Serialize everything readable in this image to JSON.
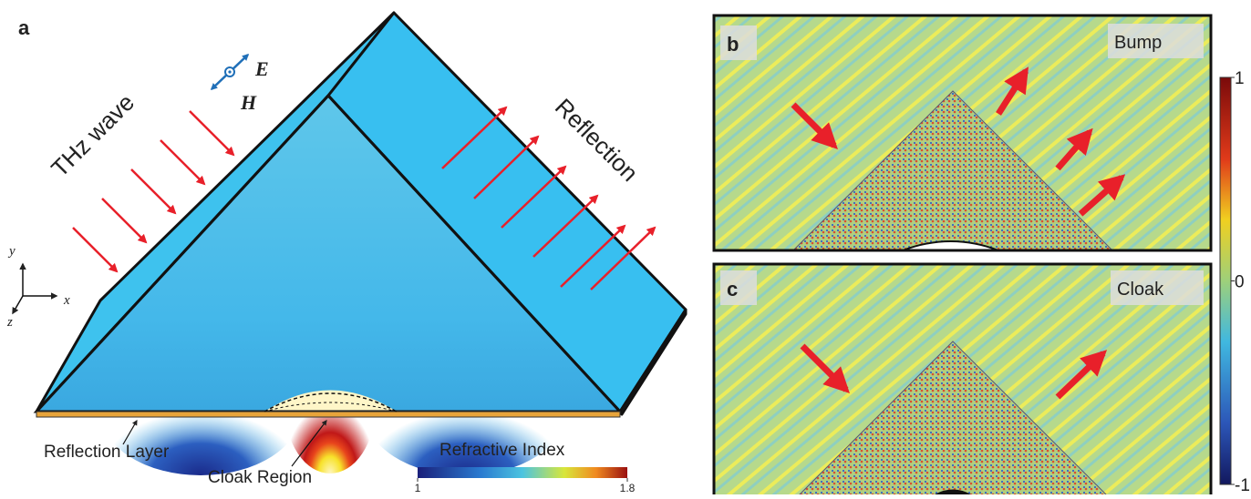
{
  "panel_a": {
    "label": "a",
    "incident": "THz wave",
    "field_e": "E",
    "field_h": "H",
    "reflected": "Reflection",
    "layer": "Reflection Layer",
    "region": "Cloak Region",
    "axes": {
      "x": "x",
      "y": "y",
      "z": "z"
    },
    "colorbar": {
      "title": "Refractive Index",
      "lim": [
        1,
        1.8
      ],
      "ticks": [
        1,
        1.8
      ]
    }
  },
  "panel_b": {
    "label": "b",
    "title": "Bump"
  },
  "panel_c": {
    "label": "c",
    "title": "Cloak"
  },
  "field_colorbar": {
    "lim": [
      -1,
      1
    ],
    "ticks": [
      -1,
      0,
      1
    ]
  }
}
